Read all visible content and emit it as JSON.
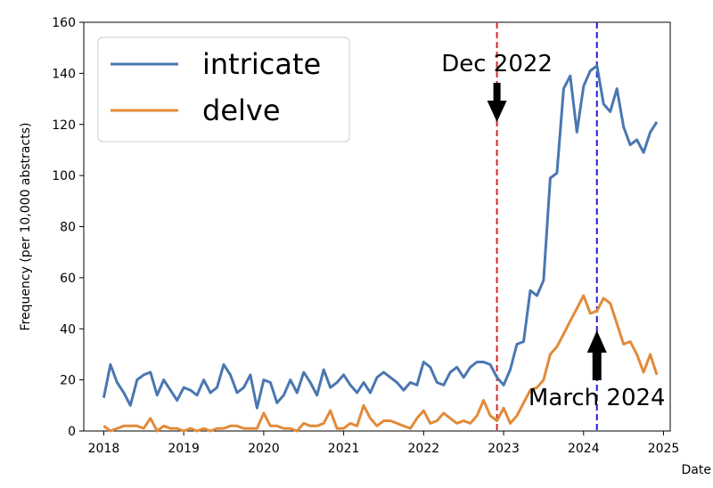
{
  "chart_data": {
    "type": "line",
    "title": "",
    "xlabel": "Date",
    "ylabel": "Frequency (per 10,000 abstracts)",
    "xlim": [
      "2017-10",
      "2025-02"
    ],
    "ylim": [
      0,
      160
    ],
    "x_ticks": [
      "2018",
      "2019",
      "2020",
      "2021",
      "2022",
      "2023",
      "2024",
      "2025"
    ],
    "y_ticks": [
      0,
      20,
      40,
      60,
      80,
      100,
      120,
      140,
      160
    ],
    "grid": false,
    "legend": "top-left",
    "series": [
      {
        "name": "intricate",
        "color": "#4a77b0",
        "x": [
          "2018-01",
          "2018-02",
          "2018-03",
          "2018-04",
          "2018-05",
          "2018-06",
          "2018-07",
          "2018-08",
          "2018-09",
          "2018-10",
          "2018-11",
          "2018-12",
          "2019-01",
          "2019-02",
          "2019-03",
          "2019-04",
          "2019-05",
          "2019-06",
          "2019-07",
          "2019-08",
          "2019-09",
          "2019-10",
          "2019-11",
          "2019-12",
          "2020-01",
          "2020-02",
          "2020-03",
          "2020-04",
          "2020-05",
          "2020-06",
          "2020-07",
          "2020-08",
          "2020-09",
          "2020-10",
          "2020-11",
          "2020-12",
          "2021-01",
          "2021-02",
          "2021-03",
          "2021-04",
          "2021-05",
          "2021-06",
          "2021-07",
          "2021-08",
          "2021-09",
          "2021-10",
          "2021-11",
          "2021-12",
          "2022-01",
          "2022-02",
          "2022-03",
          "2022-04",
          "2022-05",
          "2022-06",
          "2022-07",
          "2022-08",
          "2022-09",
          "2022-10",
          "2022-11",
          "2022-12",
          "2023-01",
          "2023-02",
          "2023-03",
          "2023-04",
          "2023-05",
          "2023-06",
          "2023-07",
          "2023-08",
          "2023-09",
          "2023-10",
          "2023-11",
          "2023-12",
          "2024-01",
          "2024-02",
          "2024-03",
          "2024-04",
          "2024-05",
          "2024-06",
          "2024-07",
          "2024-08",
          "2024-09",
          "2024-10",
          "2024-11",
          "2024-12"
        ],
        "values": [
          13,
          26,
          19,
          15,
          10,
          20,
          22,
          23,
          14,
          20,
          16,
          12,
          17,
          16,
          14,
          20,
          15,
          17,
          26,
          22,
          15,
          17,
          22,
          9,
          20,
          19,
          11,
          14,
          20,
          15,
          23,
          19,
          14,
          24,
          17,
          19,
          22,
          18,
          15,
          19,
          15,
          21,
          23,
          21,
          19,
          16,
          19,
          18,
          27,
          25,
          19,
          18,
          23,
          25,
          21,
          25,
          27,
          27,
          26,
          21,
          18,
          24,
          34,
          35,
          55,
          53,
          59,
          99,
          101,
          134,
          139,
          117,
          135,
          141,
          143,
          128,
          125,
          134,
          119,
          112,
          114,
          109,
          117,
          121
        ]
      },
      {
        "name": "delve",
        "color": "#e28a3a",
        "x": [
          "2018-01",
          "2018-02",
          "2018-03",
          "2018-04",
          "2018-05",
          "2018-06",
          "2018-07",
          "2018-08",
          "2018-09",
          "2018-10",
          "2018-11",
          "2018-12",
          "2019-01",
          "2019-02",
          "2019-03",
          "2019-04",
          "2019-05",
          "2019-06",
          "2019-07",
          "2019-08",
          "2019-09",
          "2019-10",
          "2019-11",
          "2019-12",
          "2020-01",
          "2020-02",
          "2020-03",
          "2020-04",
          "2020-05",
          "2020-06",
          "2020-07",
          "2020-08",
          "2020-09",
          "2020-10",
          "2020-11",
          "2020-12",
          "2021-01",
          "2021-02",
          "2021-03",
          "2021-04",
          "2021-05",
          "2021-06",
          "2021-07",
          "2021-08",
          "2021-09",
          "2021-10",
          "2021-11",
          "2021-12",
          "2022-01",
          "2022-02",
          "2022-03",
          "2022-04",
          "2022-05",
          "2022-06",
          "2022-07",
          "2022-08",
          "2022-09",
          "2022-10",
          "2022-11",
          "2022-12",
          "2023-01",
          "2023-02",
          "2023-03",
          "2023-04",
          "2023-05",
          "2023-06",
          "2023-07",
          "2023-08",
          "2023-09",
          "2023-10",
          "2023-11",
          "2023-12",
          "2024-01",
          "2024-02",
          "2024-03",
          "2024-04",
          "2024-05",
          "2024-06",
          "2024-07",
          "2024-08",
          "2024-09",
          "2024-10",
          "2024-11",
          "2024-12"
        ],
        "values": [
          2,
          0,
          1,
          2,
          2,
          2,
          1,
          5,
          0,
          2,
          1,
          1,
          0,
          1,
          0,
          1,
          0,
          1,
          1,
          2,
          2,
          1,
          1,
          1,
          7,
          2,
          2,
          1,
          1,
          0,
          3,
          2,
          2,
          3,
          8,
          1,
          1,
          3,
          2,
          10,
          5,
          2,
          4,
          4,
          3,
          2,
          1,
          5,
          8,
          3,
          4,
          7,
          5,
          3,
          4,
          3,
          6,
          12,
          6,
          4,
          9,
          3,
          6,
          11,
          16,
          17,
          20,
          30,
          33,
          38,
          43,
          48,
          53,
          46,
          47,
          52,
          50,
          42,
          34,
          35,
          30,
          23,
          30,
          22
        ]
      }
    ],
    "annotations": [
      {
        "text": "Dec 2022",
        "x": "2022-12",
        "line_color": "#d62728",
        "arrow": "down"
      },
      {
        "text": "March 2024",
        "x": "2024-03",
        "line_color": "#1f1fd6",
        "arrow": "up"
      }
    ]
  }
}
